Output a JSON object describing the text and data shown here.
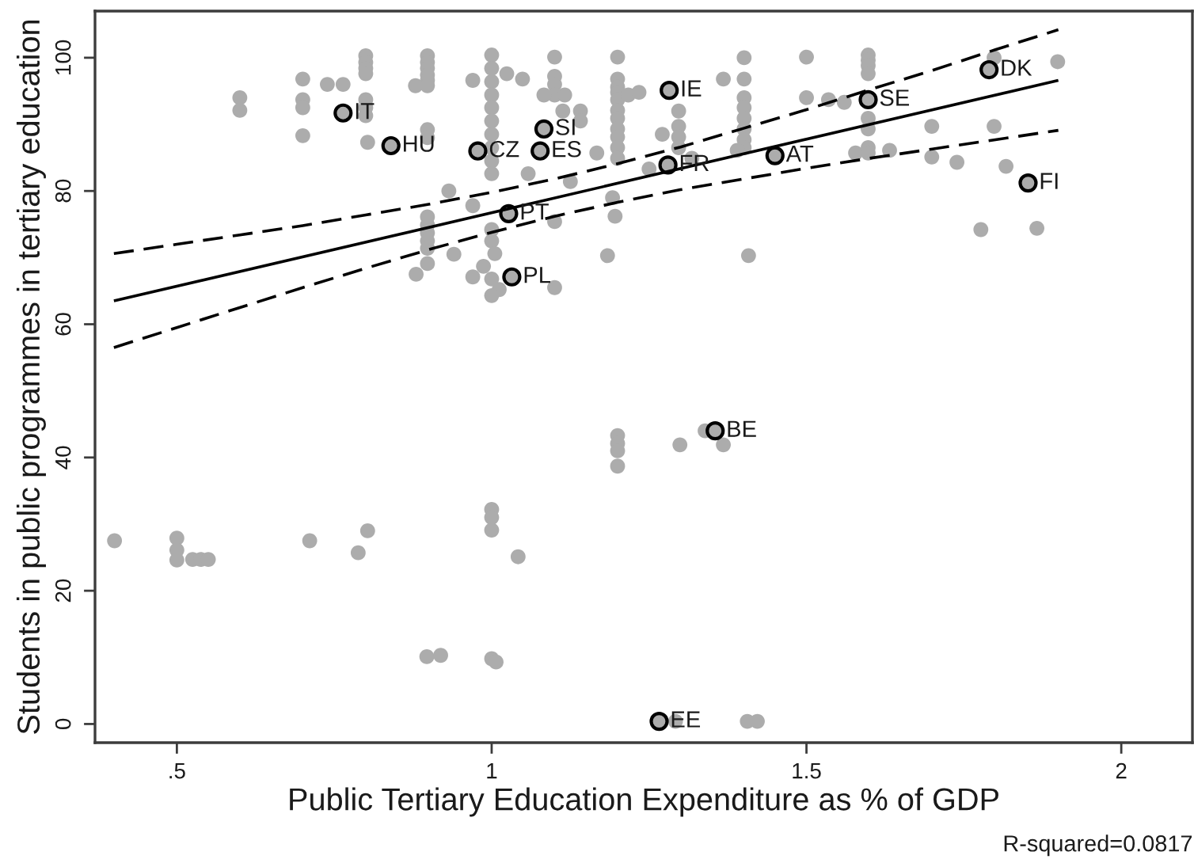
{
  "chart_data": {
    "type": "scatter",
    "xlabel": "Public Tertiary Education Expenditure as % of GDP",
    "ylabel": "Students in public programmes in tertiary education",
    "xlim": [
      0.37,
      2.113
    ],
    "ylim": [
      -2.8,
      107
    ],
    "xticks": [
      {
        "value": 0.5,
        "label": ".5"
      },
      1,
      1.5,
      2
    ],
    "yticks": [
      0,
      20,
      40,
      60,
      80,
      100
    ],
    "marker": "circle",
    "series": [
      {
        "color": "#acacac",
        "x": [
          0.401,
          0.5,
          0.5,
          0.5,
          0.525,
          0.538,
          0.55,
          0.711,
          0.788,
          0.803,
          0.897,
          0.919,
          1.0,
          1.0,
          1.0,
          1.0,
          1.007,
          1.042,
          1.2,
          1.2,
          1.2,
          1.2,
          1.299,
          1.339,
          1.355,
          1.368,
          1.266,
          1.292,
          1.406,
          1.422,
          0.6,
          0.6,
          0.7,
          0.7,
          0.7,
          0.7,
          0.739,
          0.764,
          0.764,
          0.8,
          0.8,
          0.8,
          0.8,
          0.8,
          0.8,
          0.8,
          0.803,
          0.84,
          0.879,
          0.898,
          0.898,
          0.898,
          0.898,
          0.898,
          0.898,
          0.898,
          0.898,
          0.932,
          0.898,
          0.898,
          0.898,
          0.898,
          0.898,
          0.94,
          0.898,
          0.88,
          0.97,
          0.97,
          0.97,
          0.978,
          1.0,
          1.0,
          1.0,
          1.0,
          1.0,
          1.0,
          1.0,
          1.0,
          1.0,
          1.0,
          1.0,
          1.0,
          1.005,
          0.987,
          1.0,
          1.012,
          1.0,
          1.024,
          1.049,
          1.027,
          1.032,
          1.1,
          1.1,
          1.1,
          1.1,
          1.083,
          1.116,
          1.113,
          1.083,
          1.077,
          1.058,
          1.125,
          1.1,
          1.1,
          1.2,
          1.2,
          1.2,
          1.2,
          1.2,
          1.2,
          1.2,
          1.2,
          1.2,
          1.2,
          1.2,
          1.217,
          1.234,
          1.141,
          1.141,
          1.167,
          1.192,
          1.196,
          1.184,
          1.25,
          1.28,
          1.282,
          1.297,
          1.297,
          1.297,
          1.297,
          1.318,
          1.271,
          1.401,
          1.401,
          1.401,
          1.401,
          1.401,
          1.401,
          1.401,
          1.401,
          1.368,
          1.408,
          1.39,
          1.45,
          1.5,
          1.5,
          1.535,
          1.56,
          1.578,
          1.598,
          1.598,
          1.598,
          1.598,
          1.598,
          1.598,
          1.598,
          1.598,
          1.598,
          1.632,
          1.699,
          1.699,
          1.739,
          1.798,
          1.79,
          1.798,
          1.817,
          1.899,
          1.852,
          1.777,
          1.866
        ],
        "values": [
          27.5,
          27.9,
          26.1,
          24.6,
          24.7,
          24.7,
          24.7,
          27.5,
          25.7,
          29.0,
          10.1,
          10.3,
          32.2,
          31.0,
          29.1,
          9.8,
          9.3,
          25.1,
          43.3,
          42.1,
          41.0,
          38.7,
          41.9,
          44.0,
          44.0,
          41.9,
          0.4,
          0.4,
          0.4,
          0.4,
          94.0,
          92.1,
          96.8,
          93.7,
          92.5,
          88.3,
          96.0,
          96.0,
          91.7,
          100.3,
          99.3,
          98.4,
          97.6,
          93.7,
          92.5,
          91.3,
          87.3,
          86.8,
          95.8,
          100.3,
          99.3,
          98.4,
          97.4,
          96.6,
          95.8,
          89.2,
          88.0,
          80.0,
          76.1,
          74.9,
          73.7,
          72.5,
          71.4,
          70.5,
          69.1,
          67.5,
          96.6,
          77.8,
          67.1,
          86.0,
          100.4,
          98.4,
          96.4,
          94.4,
          92.5,
          90.5,
          88.5,
          86.5,
          84.5,
          82.6,
          74.2,
          72.5,
          70.6,
          68.7,
          66.8,
          65.2,
          64.3,
          97.6,
          96.8,
          76.6,
          67.1,
          100.1,
          97.2,
          96.0,
          94.4,
          94.4,
          94.4,
          92.0,
          89.3,
          86.0,
          82.6,
          81.4,
          75.4,
          65.5,
          100.1,
          96.8,
          95.6,
          94.8,
          93.7,
          92.1,
          90.9,
          89.3,
          88.1,
          86.5,
          84.9,
          94.4,
          94.8,
          92.0,
          90.5,
          85.7,
          79.0,
          76.2,
          70.3,
          83.3,
          83.9,
          95.1,
          92.0,
          89.7,
          88.1,
          86.5,
          84.9,
          88.5,
          100.0,
          96.8,
          94.0,
          92.5,
          90.9,
          89.3,
          87.7,
          86.5,
          96.8,
          70.3,
          86.1,
          85.3,
          100.1,
          94.0,
          93.7,
          93.3,
          85.7,
          100.4,
          99.6,
          98.8,
          97.6,
          93.7,
          90.9,
          89.3,
          86.5,
          85.7,
          86.1,
          89.7,
          85.1,
          84.3,
          100.0,
          98.2,
          89.7,
          83.7,
          99.4,
          81.2,
          74.2,
          74.4
        ]
      },
      {
        "color": "#000000",
        "x": [
          0.764,
          0.84,
          0.978,
          1.083,
          1.077,
          1.027,
          1.032,
          1.282,
          1.28,
          1.45,
          1.598,
          1.79,
          1.852,
          1.355,
          1.266
        ],
        "values": [
          91.7,
          86.8,
          86.0,
          89.3,
          86.0,
          76.6,
          67.1,
          95.1,
          83.9,
          85.3,
          93.7,
          98.2,
          81.2,
          44.0,
          0.4
        ]
      },
      {
        "type": "line",
        "color": "#000000",
        "marker": "none",
        "line_style": "solid",
        "x": [
          0.4,
          1.9
        ],
        "values": [
          63.5,
          96.6
        ]
      },
      {
        "type": "line",
        "color": "#000000",
        "marker": "none",
        "line_style": "dashed",
        "x": [
          0.4,
          0.5,
          0.6,
          0.7,
          0.8,
          0.9,
          1.0,
          1.1,
          1.2,
          1.3,
          1.4,
          1.5,
          1.6,
          1.7,
          1.8,
          1.9
        ],
        "values": [
          70.6,
          72.0,
          73.4,
          74.8,
          76.4,
          78.0,
          79.8,
          81.8,
          84.1,
          86.6,
          89.4,
          92.2,
          95.2,
          98.1,
          101.2,
          104.2
        ]
      },
      {
        "type": "line",
        "color": "#000000",
        "marker": "none",
        "line_style": "dashed",
        "x": [
          0.4,
          0.5,
          0.6,
          0.7,
          0.8,
          0.9,
          1.0,
          1.1,
          1.2,
          1.3,
          1.4,
          1.5,
          1.6,
          1.7,
          1.8,
          1.9
        ],
        "values": [
          56.5,
          59.5,
          62.5,
          65.5,
          68.4,
          71.2,
          73.8,
          76.2,
          78.3,
          80.2,
          81.8,
          83.4,
          84.9,
          86.3,
          87.7,
          89.1
        ]
      }
    ],
    "annotations": [
      {
        "text": "IT",
        "x": 0.764,
        "y": 91.7
      },
      {
        "text": "HU",
        "x": 0.84,
        "y": 86.8
      },
      {
        "text": "CZ",
        "x": 0.978,
        "y": 86.0
      },
      {
        "text": "SI",
        "x": 1.083,
        "y": 89.3
      },
      {
        "text": "ES",
        "x": 1.077,
        "y": 86.0
      },
      {
        "text": "PT",
        "x": 1.027,
        "y": 76.6
      },
      {
        "text": "PL",
        "x": 1.032,
        "y": 67.1
      },
      {
        "text": "IE",
        "x": 1.282,
        "y": 95.1
      },
      {
        "text": "FR",
        "x": 1.28,
        "y": 83.9
      },
      {
        "text": "AT",
        "x": 1.45,
        "y": 85.3
      },
      {
        "text": "SE",
        "x": 1.598,
        "y": 93.7
      },
      {
        "text": "DK",
        "x": 1.79,
        "y": 98.2
      },
      {
        "text": "FI",
        "x": 1.852,
        "y": 81.2
      },
      {
        "text": "BE",
        "x": 1.355,
        "y": 44.0
      },
      {
        "text": "EE",
        "x": 1.266,
        "y": 0.4
      },
      "R-squared=0.0817"
    ]
  }
}
